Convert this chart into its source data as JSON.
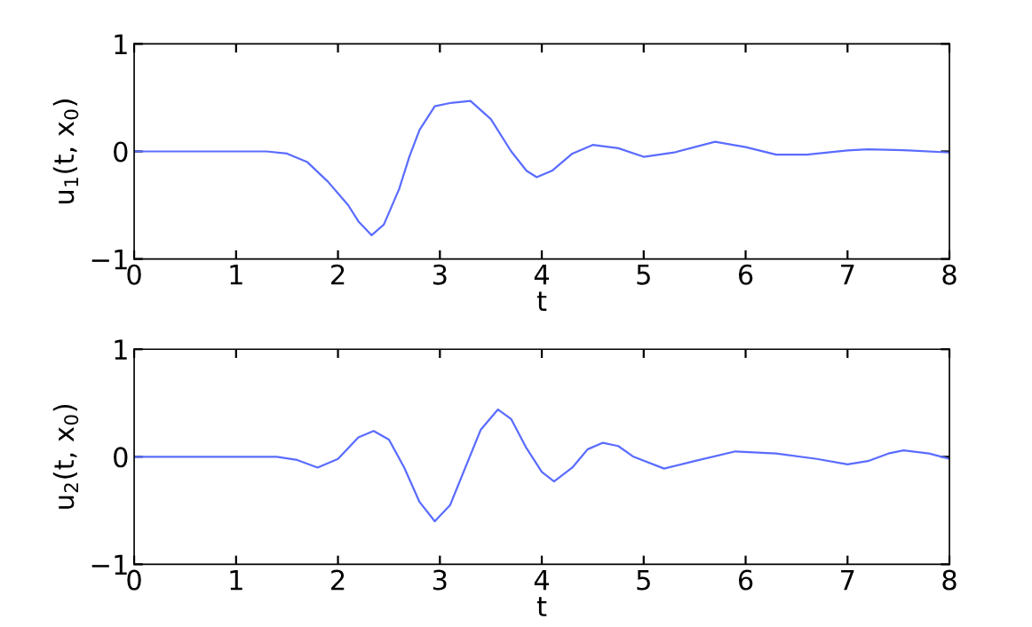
{
  "chart_data": [
    {
      "type": "line",
      "xlabel": "t",
      "ylabel": "u$_{1}$(t, x$_{0}$)",
      "xlim": [
        0,
        8
      ],
      "ylim": [
        -1,
        1
      ],
      "xticks": [
        0,
        1,
        2,
        3,
        4,
        5,
        6,
        7,
        8
      ],
      "yticks": [
        {
          "value": -1,
          "label": "−1"
        },
        0,
        1
      ],
      "grid": false,
      "legend": false,
      "series": [
        {
          "color": "#5a6cff",
          "x": [
            0,
            1.3,
            1.5,
            1.7,
            1.9,
            2.1,
            2.2,
            2.33,
            2.45,
            2.6,
            2.7,
            2.8,
            2.95,
            3.1,
            3.3,
            3.5,
            3.7,
            3.85,
            3.95,
            4.1,
            4.3,
            4.5,
            4.75,
            5.0,
            5.3,
            5.7,
            6.0,
            6.3,
            6.6,
            7.0,
            7.2,
            7.6,
            8.0
          ],
          "values": [
            0,
            0,
            -0.02,
            -0.1,
            -0.28,
            -0.5,
            -0.65,
            -0.78,
            -0.68,
            -0.35,
            -0.05,
            0.2,
            0.42,
            0.45,
            0.47,
            0.3,
            0.0,
            -0.18,
            -0.24,
            -0.18,
            -0.02,
            0.06,
            0.03,
            -0.05,
            -0.01,
            0.09,
            0.04,
            -0.03,
            -0.03,
            0.01,
            0.02,
            0.01,
            -0.01
          ]
        }
      ]
    },
    {
      "type": "line",
      "xlabel": "t",
      "ylabel": "u$_{2}$(t, x$_{0}$)",
      "xlim": [
        0,
        8
      ],
      "ylim": [
        -1,
        1
      ],
      "xticks": [
        0,
        1,
        2,
        3,
        4,
        5,
        6,
        7,
        8
      ],
      "yticks": [
        {
          "value": -1,
          "label": "−1"
        },
        0,
        1
      ],
      "grid": false,
      "legend": false,
      "series": [
        {
          "color": "#5a6cff",
          "x": [
            0,
            1.4,
            1.6,
            1.8,
            2.0,
            2.2,
            2.35,
            2.5,
            2.65,
            2.8,
            2.95,
            3.1,
            3.25,
            3.4,
            3.57,
            3.7,
            3.85,
            4.0,
            4.12,
            4.3,
            4.45,
            4.6,
            4.75,
            4.9,
            5.2,
            5.5,
            5.9,
            6.3,
            6.7,
            7.0,
            7.2,
            7.4,
            7.55,
            7.8,
            8.0
          ],
          "values": [
            0,
            0,
            -0.03,
            -0.1,
            -0.02,
            0.18,
            0.24,
            0.16,
            -0.1,
            -0.42,
            -0.6,
            -0.45,
            -0.1,
            0.25,
            0.44,
            0.35,
            0.08,
            -0.14,
            -0.23,
            -0.1,
            0.07,
            0.13,
            0.1,
            0.0,
            -0.11,
            -0.04,
            0.05,
            0.03,
            -0.02,
            -0.07,
            -0.04,
            0.03,
            0.06,
            0.03,
            -0.02
          ]
        }
      ]
    }
  ]
}
